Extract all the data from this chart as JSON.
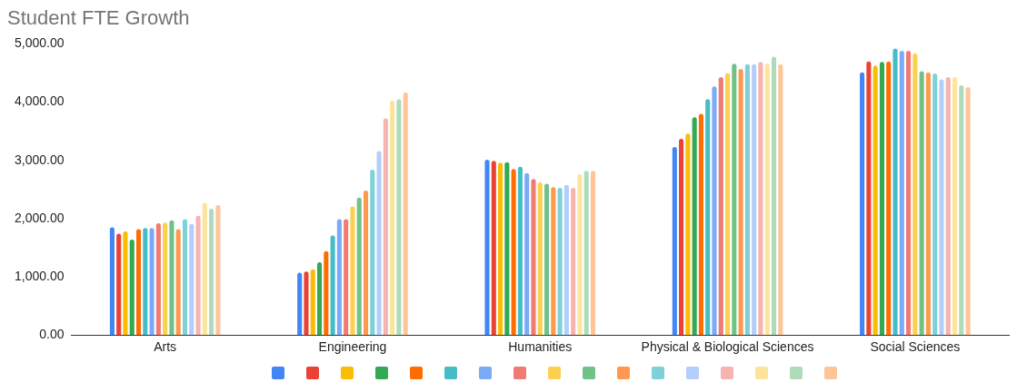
{
  "chart_data": {
    "type": "bar",
    "title": "Student FTE Growth",
    "categories": [
      "Arts",
      "Engineering",
      "Humanities",
      "Physical & Biological Sciences",
      "Social Sciences"
    ],
    "series": [
      {
        "color": "#4285f4",
        "values": [
          1850,
          1070,
          3010,
          3230,
          4510
        ]
      },
      {
        "color": "#ea4335",
        "values": [
          1740,
          1090,
          2990,
          3370,
          4700
        ]
      },
      {
        "color": "#fbbc04",
        "values": [
          1780,
          1130,
          2960,
          3460,
          4630
        ]
      },
      {
        "color": "#34a853",
        "values": [
          1640,
          1250,
          2970,
          3740,
          4690
        ]
      },
      {
        "color": "#ff6d01",
        "values": [
          1820,
          1440,
          2850,
          3800,
          4700
        ]
      },
      {
        "color": "#46bdc6",
        "values": [
          1840,
          1710,
          2890,
          4050,
          4920
        ]
      },
      {
        "color": "#7baaf7",
        "values": [
          1840,
          1990,
          2780,
          4270,
          4880
        ]
      },
      {
        "color": "#f07b72",
        "values": [
          1920,
          1990,
          2680,
          4430,
          4880
        ]
      },
      {
        "color": "#fcd04f",
        "values": [
          1930,
          2210,
          2620,
          4500,
          4840
        ]
      },
      {
        "color": "#71c287",
        "values": [
          1970,
          2360,
          2600,
          4660,
          4530
        ]
      },
      {
        "color": "#ff994d",
        "values": [
          1820,
          2480,
          2540,
          4570,
          4510
        ]
      },
      {
        "color": "#7ed1d7",
        "values": [
          1990,
          2840,
          2530,
          4650,
          4490
        ]
      },
      {
        "color": "#b3cefb",
        "values": [
          1910,
          3160,
          2580,
          4650,
          4390
        ]
      },
      {
        "color": "#f7b4ae",
        "values": [
          2050,
          3720,
          2530,
          4690,
          4430
        ]
      },
      {
        "color": "#fde49b",
        "values": [
          2270,
          4030,
          2760,
          4660,
          4430
        ]
      },
      {
        "color": "#aedcba",
        "values": [
          2170,
          4050,
          2820,
          4780,
          4290
        ]
      },
      {
        "color": "#ffc599",
        "values": [
          2230,
          4170,
          2820,
          4650,
          4260
        ]
      }
    ],
    "ylim": [
      0,
      5000
    ],
    "yticks": [
      {
        "value": 0,
        "label": "0.00"
      },
      {
        "value": 1000,
        "label": "1,000.00"
      },
      {
        "value": 2000,
        "label": "2,000.00"
      },
      {
        "value": 3000,
        "label": "3,000.00"
      },
      {
        "value": 4000,
        "label": "4,000.00"
      },
      {
        "value": 5000,
        "label": "5,000.00"
      }
    ]
  }
}
